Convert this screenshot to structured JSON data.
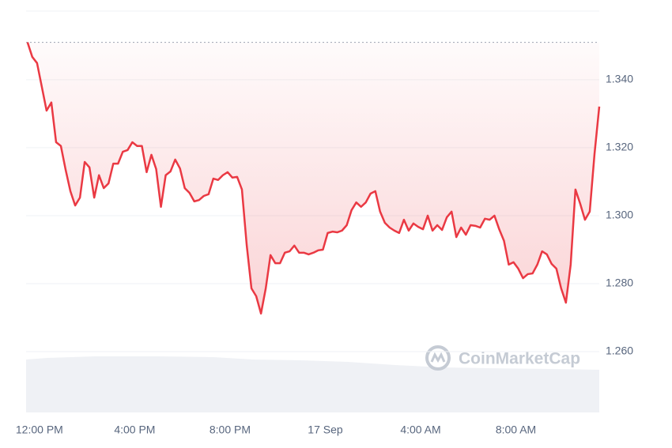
{
  "chart_data": {
    "type": "line",
    "x": [
      -0.5,
      -0.3,
      -0.1,
      0.1,
      0.3,
      0.5,
      0.7,
      0.9,
      1.1,
      1.3,
      1.5,
      1.7,
      1.9,
      2.1,
      2.3,
      2.5,
      2.7,
      2.9,
      3.1,
      3.3,
      3.5,
      3.7,
      3.9,
      4.1,
      4.3,
      4.5,
      4.7,
      4.9,
      5.1,
      5.3,
      5.5,
      5.7,
      5.9,
      6.1,
      6.3,
      6.5,
      6.7,
      6.9,
      7.1,
      7.3,
      7.5,
      7.7,
      7.9,
      8.1,
      8.3,
      8.5,
      8.7,
      8.9,
      9.1,
      9.3,
      9.5,
      9.7,
      9.9,
      10.1,
      10.3,
      10.5,
      10.7,
      10.9,
      11.1,
      11.3,
      11.5,
      11.7,
      11.9,
      12.1,
      12.3,
      12.5,
      12.7,
      12.9,
      13.1,
      13.3,
      13.5,
      13.7,
      13.9,
      14.1,
      14.3,
      14.5,
      14.7,
      14.9,
      15.1,
      15.3,
      15.5,
      15.7,
      15.9,
      16.1,
      16.3,
      16.5,
      16.7,
      16.9,
      17.1,
      17.3,
      17.5,
      17.7,
      17.9,
      18.1,
      18.3,
      18.5,
      18.7,
      18.9,
      19.1,
      19.3,
      19.5,
      19.7,
      19.9,
      20.1,
      20.3,
      20.5,
      20.7,
      20.9,
      21.1,
      21.3,
      21.5,
      21.7,
      21.9,
      22.1,
      22.3,
      22.5,
      22.7,
      22.9,
      23.1,
      23.3,
      23.5
    ],
    "series": [
      {
        "color": "#ea3943",
        "values": [
          1.351,
          1.3467,
          1.3449,
          1.3379,
          1.3309,
          1.3333,
          1.3216,
          1.3205,
          1.3135,
          1.3072,
          1.303,
          1.3053,
          1.3158,
          1.3142,
          1.3053,
          1.3119,
          1.3081,
          1.3095,
          1.3153,
          1.3153,
          1.3188,
          1.3193,
          1.3216,
          1.3205,
          1.3205,
          1.3128,
          1.3179,
          1.3137,
          1.3026,
          1.3119,
          1.313,
          1.3165,
          1.3139,
          1.3081,
          1.3067,
          1.3042,
          1.3046,
          1.3058,
          1.3063,
          1.3109,
          1.3105,
          1.3119,
          1.3128,
          1.3112,
          1.3114,
          1.3077,
          1.2914,
          1.2786,
          1.2763,
          1.2712,
          1.2786,
          1.2884,
          1.286,
          1.286,
          1.2891,
          1.2895,
          1.2912,
          1.2891,
          1.2891,
          1.2886,
          1.2891,
          1.2898,
          1.29,
          1.2949,
          1.2953,
          1.2951,
          1.2956,
          1.2972,
          1.3016,
          1.3039,
          1.3026,
          1.3039,
          1.3065,
          1.3072,
          1.3012,
          1.2979,
          1.2965,
          1.2956,
          1.2949,
          1.2988,
          1.2956,
          1.2977,
          1.2967,
          1.296,
          1.3,
          1.2956,
          1.2972,
          1.2958,
          1.2995,
          1.3012,
          1.2937,
          1.2965,
          1.2944,
          1.2972,
          1.297,
          1.2965,
          1.2991,
          1.2988,
          1.3,
          1.296,
          1.2926,
          1.2856,
          1.2863,
          1.2844,
          1.2816,
          1.2828,
          1.283,
          1.2856,
          1.2895,
          1.2886,
          1.2858,
          1.2844,
          1.2786,
          1.2744,
          1.2856,
          1.3077,
          1.3035,
          1.2988,
          1.3012,
          1.3181,
          1.3321
        ]
      }
    ],
    "reference_line": 1.351,
    "xlim": [
      -0.56,
      23.5
    ],
    "xticks": [
      {
        "value": 0,
        "label": "12:00 PM"
      },
      {
        "value": 4,
        "label": "4:00 PM"
      },
      {
        "value": 8,
        "label": "8:00 PM"
      },
      {
        "value": 12,
        "label": "17 Sep"
      },
      {
        "value": 16,
        "label": "4:00 AM"
      },
      {
        "value": 20,
        "label": "8:00 AM"
      }
    ],
    "ylim": [
      1.2421,
      1.3602
    ],
    "yticks": [
      {
        "value": 1.26,
        "label": "1.260"
      },
      {
        "value": 1.28,
        "label": "1.280"
      },
      {
        "value": 1.3,
        "label": "1.300"
      },
      {
        "value": 1.32,
        "label": "1.320"
      },
      {
        "value": 1.34,
        "label": "1.340"
      }
    ],
    "grid": true,
    "watermark": "CoinMarketCap"
  }
}
